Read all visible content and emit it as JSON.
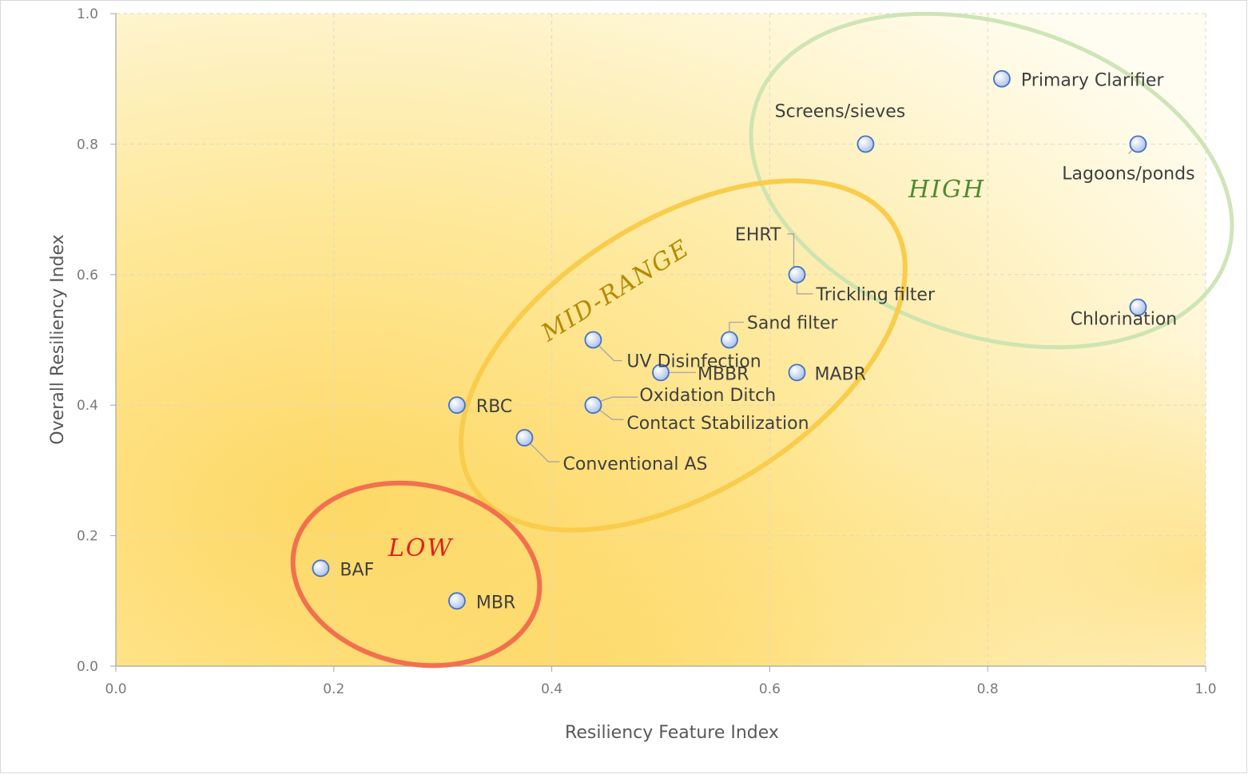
{
  "chart_data": {
    "type": "scatter",
    "title": "",
    "xlabel": "Resiliency Feature Index",
    "ylabel": "Overall Resiliency Index",
    "xlim": [
      0,
      1
    ],
    "ylim": [
      0,
      1
    ],
    "xticks": [
      "0.0",
      "0.2",
      "0.4",
      "0.6",
      "0.8",
      "1.0"
    ],
    "yticks": [
      "0.0",
      "0.2",
      "0.4",
      "0.6",
      "0.8",
      "1.0"
    ],
    "grid": true,
    "legend": "none",
    "points": [
      {
        "label": "Primary Clarifier",
        "x": 0.813,
        "y": 0.9
      },
      {
        "label": "Screens/sieves",
        "x": 0.688,
        "y": 0.8
      },
      {
        "label": "Lagoons/ponds",
        "x": 0.938,
        "y": 0.8
      },
      {
        "label": "Chlorination",
        "x": 0.938,
        "y": 0.55
      },
      {
        "label": "EHRT",
        "x": 0.625,
        "y": 0.6
      },
      {
        "label": "Trickling filter",
        "x": 0.625,
        "y": 0.6
      },
      {
        "label": "Sand filter",
        "x": 0.563,
        "y": 0.5
      },
      {
        "label": "UV Disinfection",
        "x": 0.438,
        "y": 0.5
      },
      {
        "label": "MBBR",
        "x": 0.5,
        "y": 0.45
      },
      {
        "label": "MABR",
        "x": 0.625,
        "y": 0.45
      },
      {
        "label": "Oxidation Ditch",
        "x": 0.438,
        "y": 0.4
      },
      {
        "label": "Contact Stabilization",
        "x": 0.438,
        "y": 0.4
      },
      {
        "label": "RBC",
        "x": 0.313,
        "y": 0.4
      },
      {
        "label": "Conventional AS",
        "x": 0.375,
        "y": 0.35
      },
      {
        "label": "BAF",
        "x": 0.188,
        "y": 0.15
      },
      {
        "label": "MBR",
        "x": 0.313,
        "y": 0.1
      }
    ],
    "annotations": [
      {
        "text": "HIGH",
        "color": "#4e8a2e"
      },
      {
        "text": "MID-RANGE",
        "color": "#b58a00"
      },
      {
        "text": "LOW",
        "color": "#e02020"
      }
    ],
    "colors": {
      "marker_fill": "#c5d5f0",
      "marker_stroke": "#4472c4",
      "ellipse_high": "#c9e2b0",
      "ellipse_mid": "#f9cc4c",
      "ellipse_low": "#f3704e",
      "background_warm": "#fdd865",
      "background_light": "#fffdf2"
    }
  }
}
